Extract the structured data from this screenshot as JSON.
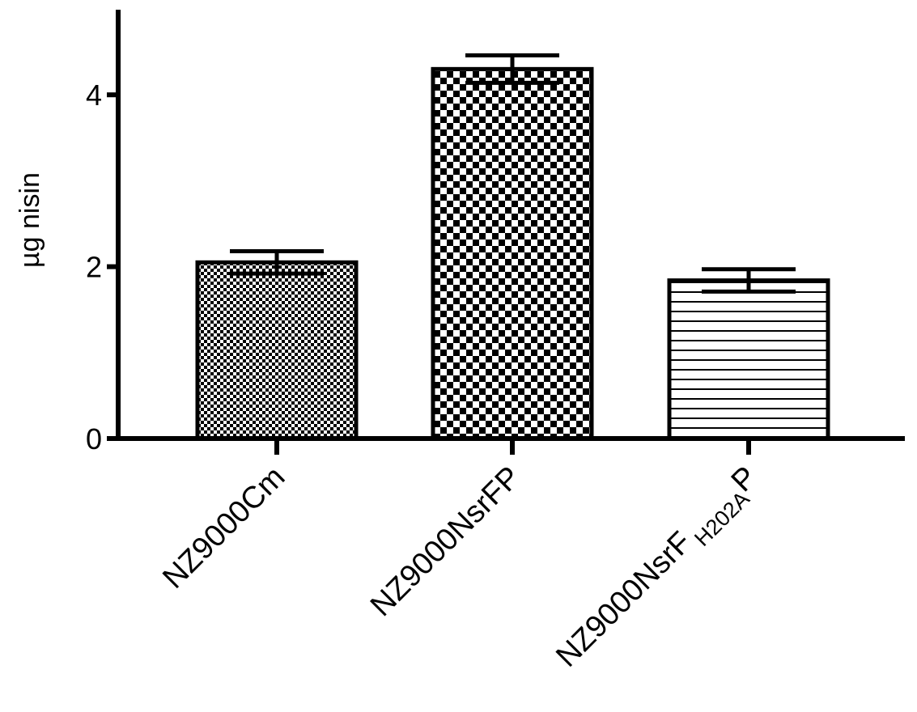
{
  "chart_data": {
    "type": "bar",
    "title": "",
    "xlabel": "",
    "ylabel": "µg nisin",
    "ylim": [
      0,
      5
    ],
    "yticks": [
      0,
      2,
      4
    ],
    "grid": false,
    "categories": [
      {
        "main": "NZ9000Cm",
        "sub": "",
        "suffix": ""
      },
      {
        "main": "NZ9000NsrFP",
        "sub": "",
        "suffix": ""
      },
      {
        "main": "NZ9000NsrF",
        "sub": "H202A",
        "suffix": "P"
      }
    ],
    "values": [
      2.05,
      4.3,
      1.84
    ],
    "errors": [
      0.13,
      0.16,
      0.13
    ],
    "fill_patterns": [
      "fine-checker",
      "coarse-checker",
      "horizontal-lines"
    ],
    "colors": {
      "ink": "#000000",
      "background": "#ffffff"
    }
  }
}
